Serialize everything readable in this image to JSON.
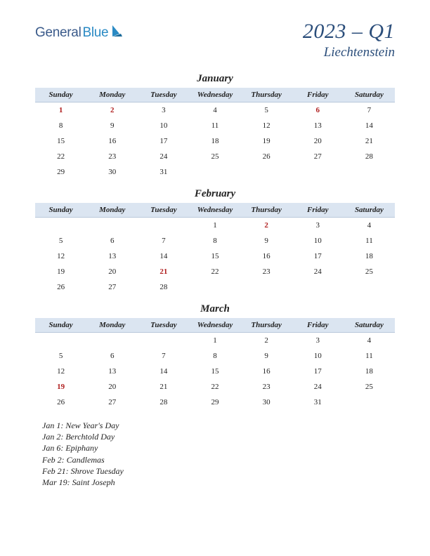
{
  "logo": {
    "part1": "General",
    "part2": "Blue"
  },
  "title": {
    "main": "2023 – Q1",
    "sub": "Liechtenstein"
  },
  "colors": {
    "header_bg": "#dbe5f1",
    "header_border": "#b8c8db",
    "title_color": "#2a4d7a",
    "holiday_color": "#b02020",
    "text_color": "#222222"
  },
  "day_headers": [
    "Sunday",
    "Monday",
    "Tuesday",
    "Wednesday",
    "Thursday",
    "Friday",
    "Saturday"
  ],
  "months": [
    {
      "name": "January",
      "weeks": [
        [
          {
            "d": "1",
            "h": true
          },
          {
            "d": "2",
            "h": true
          },
          {
            "d": "3"
          },
          {
            "d": "4"
          },
          {
            "d": "5"
          },
          {
            "d": "6",
            "h": true
          },
          {
            "d": "7"
          }
        ],
        [
          {
            "d": "8"
          },
          {
            "d": "9"
          },
          {
            "d": "10"
          },
          {
            "d": "11"
          },
          {
            "d": "12"
          },
          {
            "d": "13"
          },
          {
            "d": "14"
          }
        ],
        [
          {
            "d": "15"
          },
          {
            "d": "16"
          },
          {
            "d": "17"
          },
          {
            "d": "18"
          },
          {
            "d": "19"
          },
          {
            "d": "20"
          },
          {
            "d": "21"
          }
        ],
        [
          {
            "d": "22"
          },
          {
            "d": "23"
          },
          {
            "d": "24"
          },
          {
            "d": "25"
          },
          {
            "d": "26"
          },
          {
            "d": "27"
          },
          {
            "d": "28"
          }
        ],
        [
          {
            "d": "29"
          },
          {
            "d": "30"
          },
          {
            "d": "31"
          },
          {
            "d": ""
          },
          {
            "d": ""
          },
          {
            "d": ""
          },
          {
            "d": ""
          }
        ]
      ]
    },
    {
      "name": "February",
      "weeks": [
        [
          {
            "d": ""
          },
          {
            "d": ""
          },
          {
            "d": ""
          },
          {
            "d": "1"
          },
          {
            "d": "2",
            "h": true
          },
          {
            "d": "3"
          },
          {
            "d": "4"
          }
        ],
        [
          {
            "d": "5"
          },
          {
            "d": "6"
          },
          {
            "d": "7"
          },
          {
            "d": "8"
          },
          {
            "d": "9"
          },
          {
            "d": "10"
          },
          {
            "d": "11"
          }
        ],
        [
          {
            "d": "12"
          },
          {
            "d": "13"
          },
          {
            "d": "14"
          },
          {
            "d": "15"
          },
          {
            "d": "16"
          },
          {
            "d": "17"
          },
          {
            "d": "18"
          }
        ],
        [
          {
            "d": "19"
          },
          {
            "d": "20"
          },
          {
            "d": "21",
            "h": true
          },
          {
            "d": "22"
          },
          {
            "d": "23"
          },
          {
            "d": "24"
          },
          {
            "d": "25"
          }
        ],
        [
          {
            "d": "26"
          },
          {
            "d": "27"
          },
          {
            "d": "28"
          },
          {
            "d": ""
          },
          {
            "d": ""
          },
          {
            "d": ""
          },
          {
            "d": ""
          }
        ]
      ]
    },
    {
      "name": "March",
      "weeks": [
        [
          {
            "d": ""
          },
          {
            "d": ""
          },
          {
            "d": ""
          },
          {
            "d": "1"
          },
          {
            "d": "2"
          },
          {
            "d": "3"
          },
          {
            "d": "4"
          }
        ],
        [
          {
            "d": "5"
          },
          {
            "d": "6"
          },
          {
            "d": "7"
          },
          {
            "d": "8"
          },
          {
            "d": "9"
          },
          {
            "d": "10"
          },
          {
            "d": "11"
          }
        ],
        [
          {
            "d": "12"
          },
          {
            "d": "13"
          },
          {
            "d": "14"
          },
          {
            "d": "15"
          },
          {
            "d": "16"
          },
          {
            "d": "17"
          },
          {
            "d": "18"
          }
        ],
        [
          {
            "d": "19",
            "h": true
          },
          {
            "d": "20"
          },
          {
            "d": "21"
          },
          {
            "d": "22"
          },
          {
            "d": "23"
          },
          {
            "d": "24"
          },
          {
            "d": "25"
          }
        ],
        [
          {
            "d": "26"
          },
          {
            "d": "27"
          },
          {
            "d": "28"
          },
          {
            "d": "29"
          },
          {
            "d": "30"
          },
          {
            "d": "31"
          },
          {
            "d": ""
          }
        ]
      ]
    }
  ],
  "holidays": [
    "Jan 1: New Year's Day",
    "Jan 2: Berchtold Day",
    "Jan 6: Epiphany",
    "Feb 2: Candlemas",
    "Feb 21: Shrove Tuesday",
    "Mar 19: Saint Joseph"
  ]
}
